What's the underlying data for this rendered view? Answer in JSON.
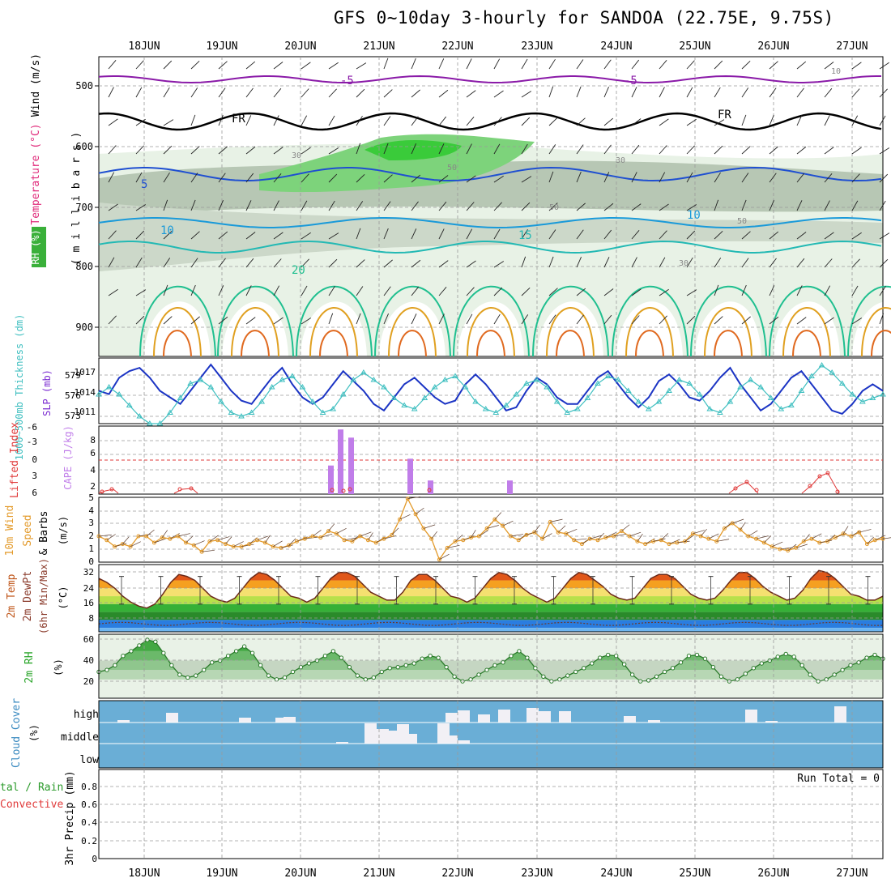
{
  "title": "GFS 0~10day 3-hourly for SANDOA (22.75E, 9.75S)",
  "dates": [
    "18JUN",
    "19JUN",
    "20JUN",
    "21JUN",
    "22JUN",
    "23JUN",
    "24JUN",
    "25JUN",
    "26JUN",
    "27JUN"
  ],
  "colors": {
    "grid": "#9a9a9a",
    "tbox": "#2a39c9",
    "slp": "#1b34c4",
    "thickness": "#3fbfc0",
    "cape": "#c07de9",
    "lifted": "#e03a3a",
    "wind10": "#e39a2a",
    "rh": "#48a84a",
    "cloud": "#6aaed6"
  },
  "panels": {
    "upper": {
      "ylabel_rh": "RH (%)",
      "ylabel_temp": "Temperature (°C)",
      "ylabel_wind": "Wind (m/s)",
      "ylabel_mb": "( m i l l i b a r s )",
      "ticks": [
        "500",
        "600",
        "700",
        "800",
        "900"
      ],
      "contour_labels": [
        "-5",
        "-5",
        "FR",
        "FR",
        "5",
        "10",
        "10",
        "15",
        "20",
        "30",
        "30",
        "50",
        "50",
        "50",
        "10",
        "30"
      ]
    },
    "slp": {
      "ylabel_thick": "1000~500mb Thickness (dm)",
      "ylabel_slp": "SLP (mb)",
      "thick_ticks": [
        "579",
        "576",
        "573"
      ],
      "slp_ticks": [
        "1017",
        "1014",
        "1011"
      ]
    },
    "cape": {
      "ylabel_li": "Lifted Index",
      "ylabel_cape": "CAPE (J/kg)",
      "li_ticks": [
        "-6",
        "-3",
        "0",
        "3",
        "6"
      ],
      "cape_ticks": [
        "8",
        "6",
        "4",
        "2"
      ]
    },
    "wind": {
      "ylabel_a": "10m Wind",
      "ylabel_b": "Speed",
      "ylabel_c": "& Barbs",
      "ylabel_unit": "(m/s)",
      "ticks": [
        "5",
        "4",
        "3",
        "2",
        "1",
        "0"
      ]
    },
    "temp": {
      "ylabel_a": "2m Temp",
      "ylabel_b": "2m DewPt",
      "ylabel_c": "(6hr Min/Max)",
      "ylabel_unit": "(°C)",
      "ticks": [
        "32",
        "24",
        "16",
        "8"
      ]
    },
    "rh": {
      "ylabel": "2m RH",
      "ylabel_unit": "(%)",
      "ticks": [
        "60",
        "40",
        "20"
      ]
    },
    "cloud": {
      "ylabel": "Cloud Cover",
      "ylabel_unit": "(%)",
      "levels": [
        "high",
        "middle",
        "low"
      ]
    },
    "precip": {
      "ylabel_a": "tal / Rain",
      "ylabel_b": "Convective",
      "ylabel_c": "3hr Precip (mm)",
      "ticks": [
        "0.8",
        "0.6",
        "0.4",
        "0.2",
        "0"
      ],
      "run_total": "Run Total = 0"
    }
  },
  "chart_data": [
    {
      "type": "line",
      "title": "SLP (mb) and 1000~500mb Thickness (dm)",
      "series": [
        {
          "name": "SLP (mb)",
          "values": [
            1014,
            1013.5,
            1016,
            1017,
            1017.5,
            1016,
            1014,
            1013,
            1012,
            1014,
            1016,
            1018,
            1016,
            1014,
            1012.5,
            1012,
            1014,
            1016,
            1017.5,
            1015,
            1013,
            1012,
            1013,
            1015,
            1017,
            1015.5,
            1014,
            1012,
            1011,
            1013,
            1015,
            1016,
            1014.5,
            1013,
            1012,
            1012.5,
            1015,
            1016.5,
            1015,
            1013,
            1011,
            1011.5,
            1014,
            1016,
            1015,
            1013,
            1012,
            1012,
            1014,
            1016,
            1017,
            1015,
            1013,
            1011.5,
            1013,
            1015.5,
            1016.5,
            1015,
            1013,
            1012.5,
            1014,
            1016,
            1017.5,
            1015,
            1013,
            1011,
            1012,
            1014,
            1016,
            1017,
            1015,
            1013,
            1011,
            1010.5,
            1012,
            1014,
            1015,
            1014
          ]
        },
        {
          "name": "1000~500mb Thickness (dm)",
          "values": [
            576,
            577,
            576,
            574.5,
            573,
            572,
            572,
            573.5,
            575.5,
            577.5,
            578,
            577,
            575,
            573.5,
            573,
            573.5,
            575,
            577,
            578,
            578.5,
            577,
            575,
            573.5,
            574,
            576,
            578,
            579,
            578,
            577,
            575.5,
            574.5,
            574,
            575.5,
            577,
            578,
            578.5,
            577,
            575,
            574,
            573.5,
            574.5,
            576,
            577.5,
            578,
            577,
            575,
            573.5,
            574,
            575.5,
            577.5,
            578.5,
            578,
            576.5,
            575,
            574,
            575,
            576.5,
            578,
            577.5,
            576,
            574,
            573.5,
            575,
            577,
            578,
            577,
            575.5,
            574,
            574.5,
            576.5,
            578.5,
            580,
            579,
            577.5,
            576,
            575,
            575.5,
            576
          ]
        }
      ],
      "ylim_slp": [
        1009,
        1019
      ],
      "ylim_thick": [
        572,
        581
      ]
    },
    {
      "type": "bar",
      "title": "CAPE (J/kg)",
      "x": [
        "20JUN 09Z",
        "20JUN 12Z",
        "20JUN 15Z",
        "21JUN 09Z",
        "21JUN 15Z",
        "22JUN 15Z"
      ],
      "values": [
        4.2,
        9.5,
        8.3,
        5.2,
        2,
        2
      ],
      "ylim": [
        0,
        10
      ]
    },
    {
      "type": "line",
      "title": "10m Wind Speed (m/s)",
      "values": [
        2,
        1.7,
        1.2,
        1.4,
        1.2,
        2,
        2,
        1.5,
        1.9,
        1.8,
        2,
        1.5,
        1.3,
        0.8,
        1.6,
        1.7,
        1.4,
        1.2,
        1.2,
        1.4,
        1.7,
        1.5,
        1.2,
        1.1,
        1.3,
        1.6,
        1.8,
        2,
        1.9,
        2.4,
        2.2,
        1.7,
        1.6,
        2,
        1.7,
        1.5,
        1.8,
        2.1,
        3.3,
        4.9,
        3.7,
        2.6,
        1.8,
        0.2,
        1.1,
        1.6,
        1.7,
        1.9,
        2,
        2.6,
        3.3,
        2.8,
        2,
        1.7,
        2.1,
        2.3,
        1.8,
        3.1,
        2.3,
        2.2,
        1.7,
        1.4,
        1.8,
        1.7,
        1.9,
        2,
        2.4,
        2,
        1.6,
        1.4,
        1.6,
        1.7,
        1.4,
        1.5,
        1.6,
        2.2,
        2,
        1.8,
        1.6,
        2.6,
        3,
        2.5,
        2,
        1.8,
        1.5,
        1.2,
        1,
        0.9,
        1.1,
        1.6,
        1.8,
        1.5,
        1.6,
        1.9,
        2.2,
        2,
        2.3,
        1.4,
        1.7,
        1.8
      ],
      "ylim": [
        0,
        5
      ]
    },
    {
      "type": "area",
      "title": "2m Temp (°C)",
      "values": [
        29,
        27,
        24,
        20,
        17,
        15,
        14,
        16,
        21,
        27,
        31,
        30,
        28,
        24,
        20,
        18,
        17,
        19,
        24,
        29,
        32,
        31,
        28,
        24,
        20,
        19,
        17,
        19,
        24,
        29,
        32,
        32,
        30,
        26,
        22,
        20,
        18,
        18,
        22,
        28,
        31,
        31,
        28,
        24,
        20,
        19,
        17,
        19,
        24,
        29,
        32,
        31,
        28,
        24,
        21,
        19,
        17,
        19,
        24,
        29,
        32,
        31,
        28,
        25,
        21,
        19,
        18,
        19,
        24,
        29,
        31,
        31,
        29,
        25,
        21,
        19,
        18,
        19,
        23,
        28,
        32,
        32,
        29,
        25,
        22,
        20,
        18,
        19,
        23,
        29,
        33,
        32,
        29,
        25,
        21,
        20,
        18,
        18,
        20
      ],
      "ylim": [
        2,
        36
      ]
    },
    {
      "type": "area",
      "title": "2m RH (%)",
      "values": [
        28,
        30,
        35,
        45,
        50,
        56,
        62,
        60,
        48,
        35,
        25,
        22,
        24,
        30,
        38,
        40,
        45,
        50,
        55,
        48,
        35,
        24,
        20,
        22,
        28,
        33,
        37,
        40,
        45,
        50,
        43,
        33,
        24,
        20,
        22,
        28,
        32,
        33,
        35,
        37,
        42,
        45,
        43,
        33,
        23,
        18,
        20,
        25,
        30,
        35,
        38,
        45,
        50,
        43,
        32,
        23,
        18,
        20,
        24,
        28,
        32,
        37,
        43,
        46,
        45,
        36,
        25,
        18,
        19,
        23,
        28,
        32,
        38,
        45,
        46,
        42,
        33,
        23,
        18,
        20,
        26,
        32,
        37,
        40,
        44,
        47,
        44,
        35,
        25,
        18,
        20,
        25,
        30,
        35,
        38,
        43,
        46,
        42
      ],
      "ylim": [
        0,
        68
      ]
    },
    {
      "type": "bar",
      "title": "3hr Precip (mm)",
      "values": [],
      "ylim": [
        0,
        0.9
      ]
    }
  ]
}
